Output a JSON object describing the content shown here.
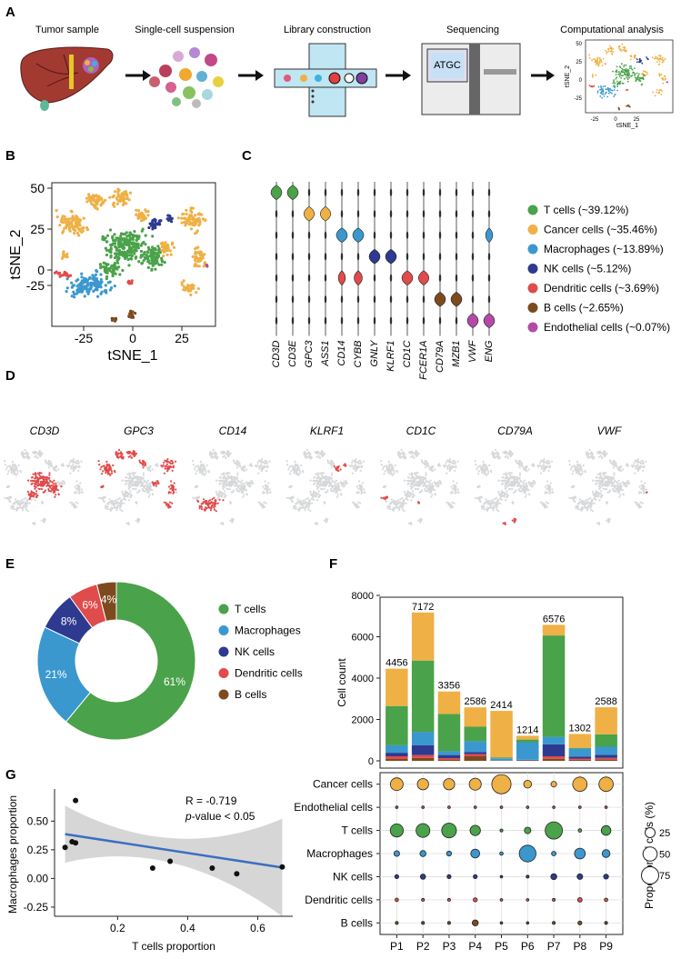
{
  "panel_letters": [
    "A",
    "B",
    "C",
    "D",
    "E",
    "F",
    "G"
  ],
  "colors": {
    "t": "#4aa24a",
    "cancer": "#efb045",
    "mac": "#3a98cf",
    "nk": "#2e3a8f",
    "dc": "#e04b4b",
    "b": "#7d4a1e",
    "endo": "#b34aa8",
    "grey": "#d6d8da"
  },
  "workflow": {
    "steps": [
      "Tumor sample",
      "Single-cell suspension",
      "Library construction",
      "Sequencing",
      "Computational analysis"
    ],
    "seq_text": "ATGC",
    "mini_tsne": {
      "x_ticks": [
        "-25",
        "0",
        "25"
      ],
      "y_ticks": [
        "50",
        "25",
        "0",
        "-25"
      ],
      "xlabel": "tSNE_1",
      "ylabel": "tSNE_2"
    }
  },
  "panel_b": {
    "xlabel": "tSNE_1",
    "ylabel": "tSNE_2",
    "x_ticks": [
      "-25",
      "0",
      "25"
    ],
    "y_ticks": [
      "50",
      "25",
      "0",
      "-25"
    ]
  },
  "panel_c": {
    "genes": [
      "CD3D",
      "CD3E",
      "GPC3",
      "ASS1",
      "CD14",
      "CYBB",
      "GNLY",
      "KLRF1",
      "CD1C",
      "FCER1A",
      "CD79A",
      "MZB1",
      "VWF",
      "ENG"
    ],
    "legend": [
      "T cells (~39.12%)",
      "Cancer cells (~35.46%)",
      "Macrophages (~13.89%)",
      "NK cells (~5.12%)",
      "Dendritic cells (~3.69%)",
      "B cells (~2.65%)",
      "Endothelial cells (~0.07%)"
    ]
  },
  "panel_d": {
    "genes": [
      "CD3D",
      "GPC3",
      "CD14",
      "KLRF1",
      "CD1C",
      "CD79A",
      "VWF"
    ]
  },
  "chart_data": [
    {
      "id": "E",
      "type": "pie",
      "title": "",
      "labels": [
        "T cells",
        "Macrophages",
        "NK cells",
        "Dendritic cells",
        "B cells"
      ],
      "values": [
        61,
        21,
        8,
        6,
        4
      ],
      "value_labels": [
        "61%",
        "21%",
        "8%",
        "6%",
        "4%"
      ]
    },
    {
      "id": "F-bar",
      "type": "bar",
      "stacked": true,
      "categories": [
        "P1",
        "P2",
        "P3",
        "P4",
        "P5",
        "P6",
        "P7",
        "P8",
        "P9"
      ],
      "totals": [
        4456,
        7172,
        3356,
        2586,
        2414,
        1214,
        6576,
        1302,
        2588
      ],
      "total_labels": [
        "4456",
        "7172",
        "3356",
        "2586",
        "2414",
        "1214",
        "6576",
        "1302",
        "2588"
      ],
      "series": [
        {
          "name": "B cells",
          "values": [
            90,
            140,
            60,
            220,
            5,
            10,
            100,
            50,
            60
          ]
        },
        {
          "name": "Dendritic cells",
          "values": [
            130,
            140,
            70,
            100,
            10,
            10,
            120,
            60,
            80
          ]
        },
        {
          "name": "NK cells",
          "values": [
            170,
            480,
            150,
            110,
            20,
            30,
            580,
            100,
            150
          ]
        },
        {
          "name": "Macrophages",
          "values": [
            360,
            640,
            190,
            520,
            80,
            850,
            360,
            380,
            390
          ]
        },
        {
          "name": "T cells",
          "values": [
            1900,
            3450,
            1800,
            700,
            50,
            130,
            4900,
            40,
            600
          ]
        },
        {
          "name": "Endothelial cells",
          "values": [
            0,
            2,
            0,
            0,
            0,
            0,
            0,
            0,
            0
          ]
        },
        {
          "name": "Cancer cells",
          "values": [
            1806,
            2320,
            1086,
            936,
            2249,
            184,
            516,
            672,
            1308
          ]
        }
      ],
      "ylabel": "Cell count",
      "y_ticks": [
        "0",
        "2000",
        "4000",
        "6000",
        "8000"
      ],
      "ylim": [
        0,
        8000
      ]
    },
    {
      "id": "F-dot",
      "type": "scatter",
      "rows": [
        "Cancer cells",
        "Endothelial cells",
        "T cells",
        "Macrophages",
        "NK cells",
        "Dendritic cells",
        "B cells"
      ],
      "columns": [
        "P1",
        "P2",
        "P3",
        "P4",
        "P5",
        "P6",
        "P7",
        "P8",
        "P9"
      ],
      "proportions": [
        [
          41,
          32,
          32,
          36,
          93,
          15,
          8,
          52,
          51
        ],
        [
          0,
          0.03,
          0,
          0,
          0,
          0,
          0,
          0,
          0
        ],
        [
          43,
          48,
          54,
          27,
          2,
          11,
          75,
          3,
          23
        ],
        [
          8,
          9,
          6,
          20,
          3,
          70,
          5,
          29,
          15
        ],
        [
          4,
          7,
          4,
          4,
          1,
          2,
          9,
          8,
          6
        ],
        [
          3,
          2,
          2,
          4,
          0.4,
          1,
          2,
          5,
          3
        ],
        [
          2,
          2,
          2,
          9,
          0.2,
          1,
          2,
          4,
          2
        ]
      ],
      "size_legend_title": "Proportion of cells (%)",
      "size_legend": [
        "25",
        "50",
        "75"
      ]
    },
    {
      "id": "G",
      "type": "scatter",
      "title": "",
      "x": [
        0.05,
        0.07,
        0.08,
        0.3,
        0.35,
        0.47,
        0.54,
        0.67,
        0.08
      ],
      "y": [
        0.27,
        0.32,
        0.68,
        0.09,
        0.15,
        0.09,
        0.04,
        0.1,
        0.31
      ],
      "fit": {
        "slope": -0.47,
        "intercept": 0.41
      },
      "annotation": [
        "R = -0.719",
        "-value < 0.05"
      ],
      "annotation_p": "p",
      "xlabel": "T cells  proportion",
      "ylabel": "Macrophages  proportion",
      "x_ticks": [
        "0.2",
        "0.4",
        "0.6"
      ],
      "y_ticks": [
        "-0.25",
        "0.00",
        "0.25",
        "0.50"
      ],
      "xlim": [
        0.02,
        0.7
      ],
      "ylim": [
        -0.33,
        0.78
      ]
    }
  ]
}
